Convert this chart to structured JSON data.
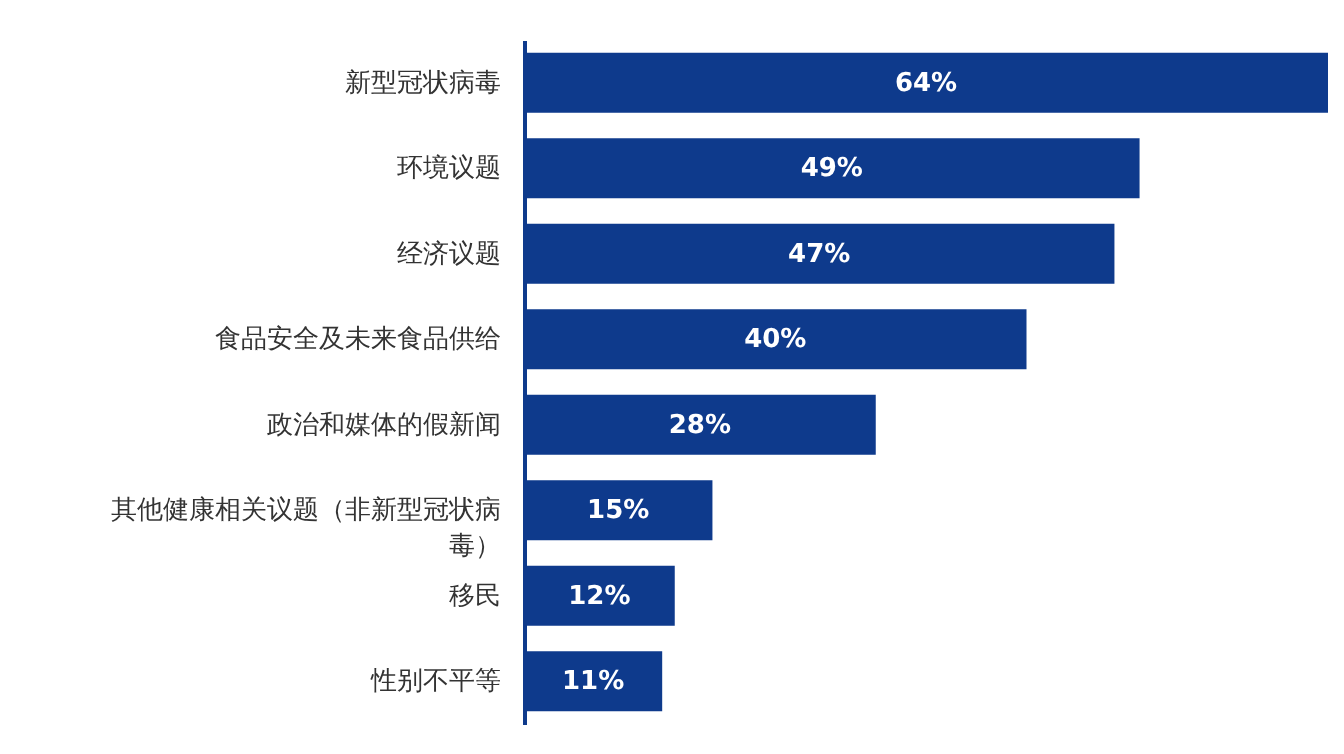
{
  "chart_data": {
    "type": "bar",
    "orientation": "horizontal",
    "categories": [
      "新型冠状病毒",
      "环境议题",
      "经济议题",
      "食品安全及未来食品供给",
      "政治和媒体的假新闻",
      "其他健康相关议题（非新型冠状病毒）",
      "移民",
      "性别不平等"
    ],
    "values": [
      64,
      49,
      47,
      40,
      28,
      15,
      12,
      11
    ],
    "value_labels": [
      "64%",
      "49%",
      "47%",
      "40%",
      "28%",
      "15%",
      "12%",
      "11%"
    ],
    "color": "#0e3a8c",
    "tick_labels": "y"
  }
}
